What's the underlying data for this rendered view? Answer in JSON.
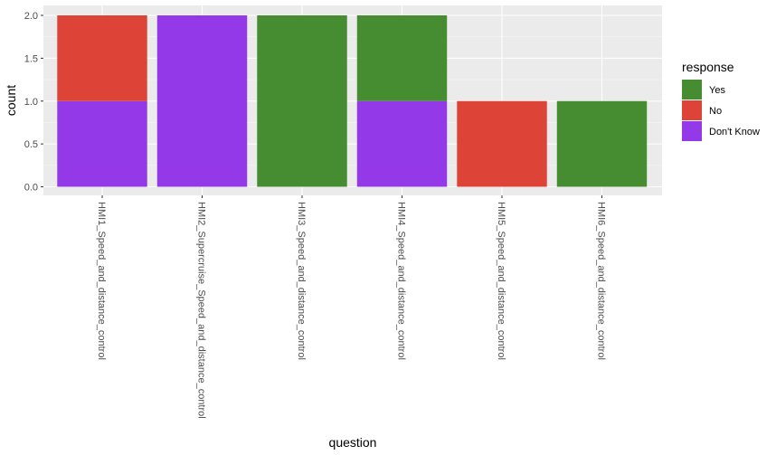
{
  "chart_data": {
    "type": "bar",
    "stacked": true,
    "categories": [
      "HMI1_Speed_and_distance_control",
      "HMI2_Supercruise_Speed_and_distance_control",
      "HMI3_Speed_and_distance_control",
      "HMI4_Speed_and_distance_control",
      "HMI5_Speed_and_distance_control",
      "HMI6_Speed_and_distance_control"
    ],
    "series": [
      {
        "name": "Don't Know",
        "color": "#9339E8",
        "values": [
          1,
          2,
          0,
          1,
          0,
          0
        ]
      },
      {
        "name": "No",
        "color": "#DE4337",
        "values": [
          1,
          0,
          0,
          0,
          1,
          0
        ]
      },
      {
        "name": "Yes",
        "color": "#468C31",
        "values": [
          0,
          0,
          2,
          1,
          0,
          1
        ]
      }
    ],
    "legend_order": [
      "Yes",
      "No",
      "Don't Know"
    ],
    "title": "",
    "xlabel": "question",
    "ylabel": "count",
    "ylim": [
      0,
      2
    ],
    "yticks": [
      "0.0",
      "0.5",
      "1.0",
      "1.5",
      "2.0"
    ],
    "legend_title": "response",
    "legend_position": "right",
    "grid": true,
    "panel_color": "#EBEBEB"
  }
}
